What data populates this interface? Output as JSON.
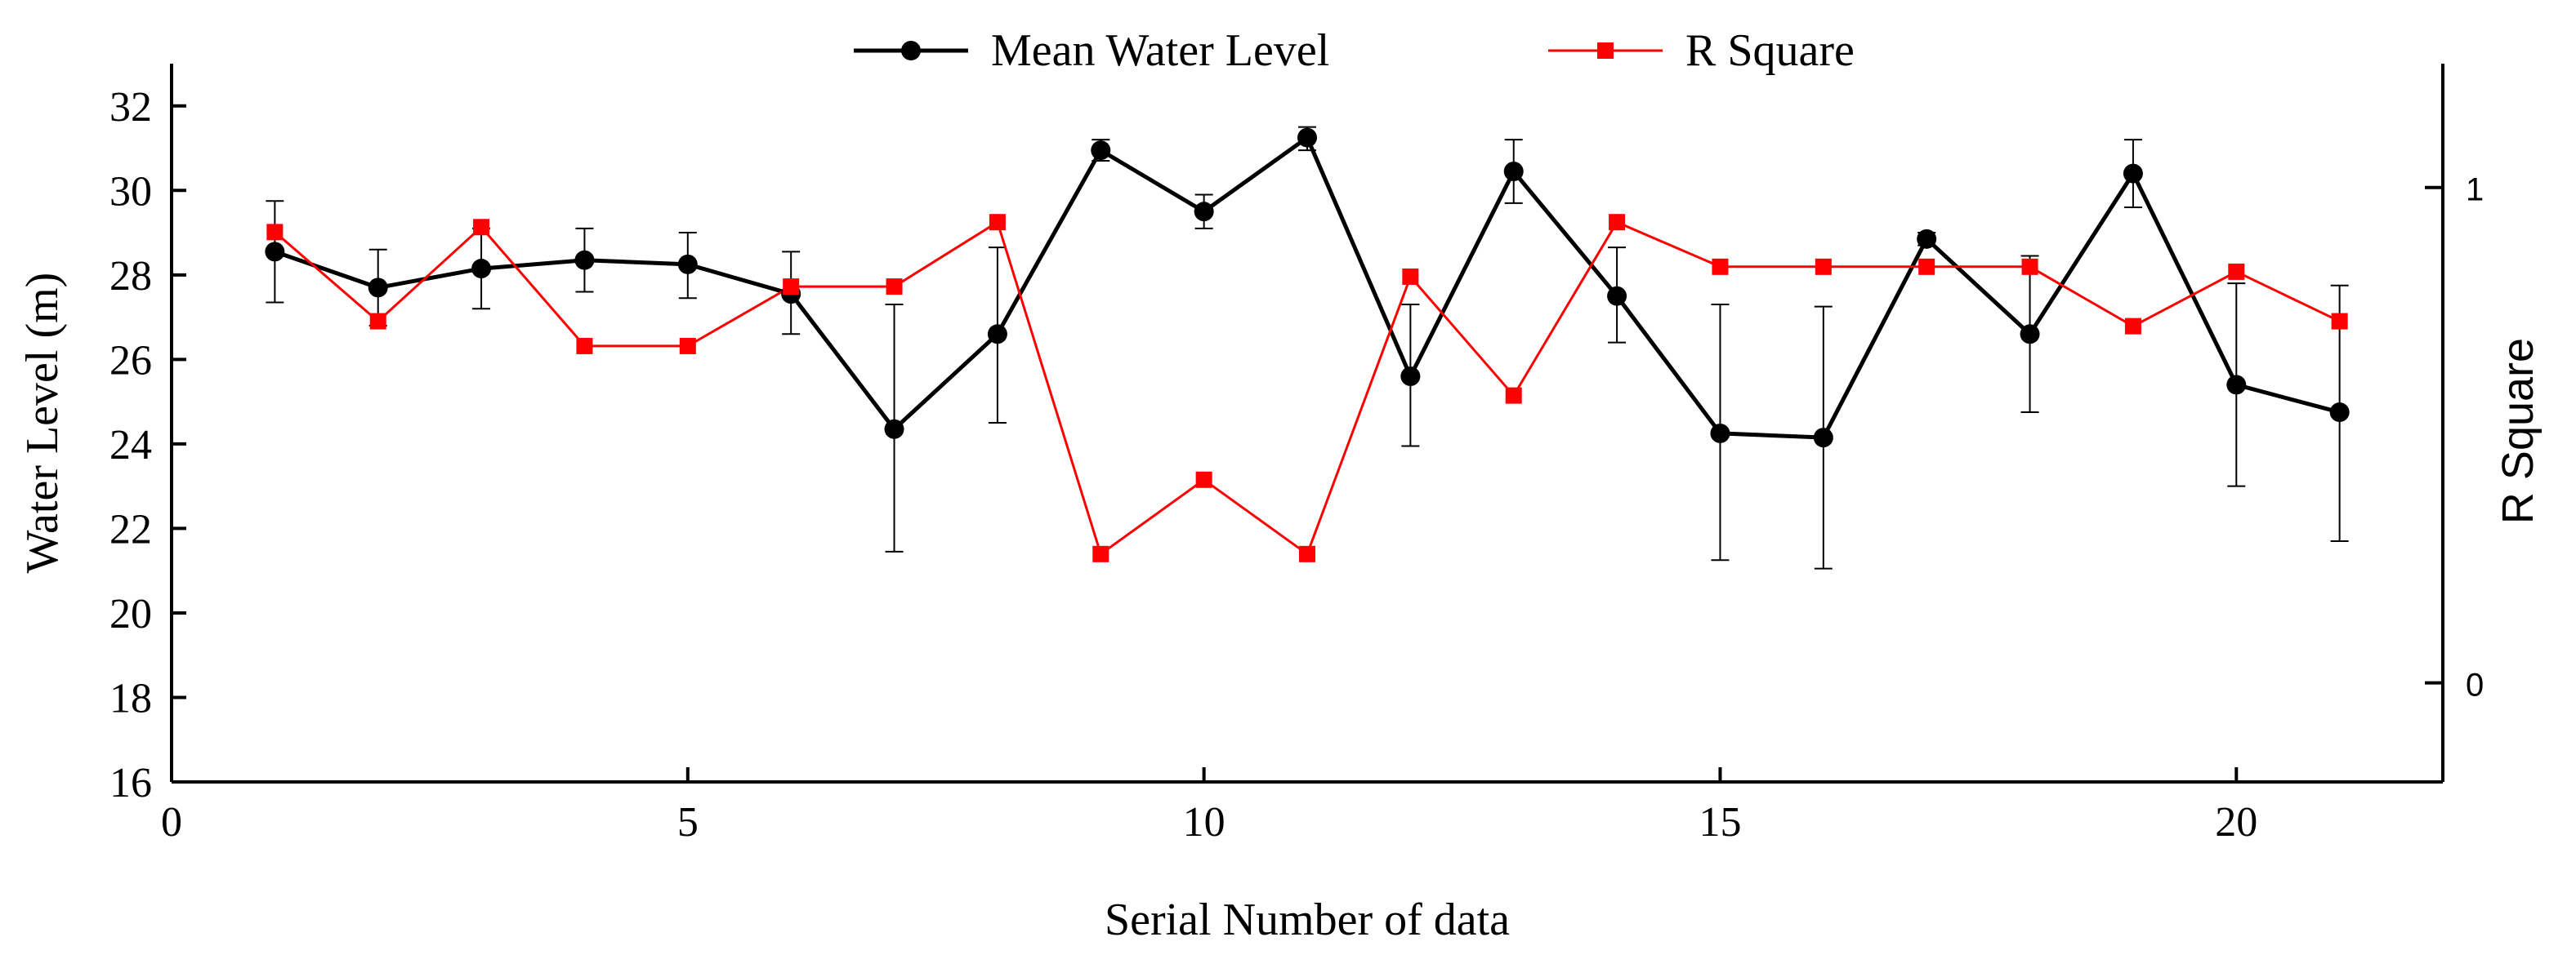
{
  "chart_data": {
    "type": "line",
    "title": "",
    "xlabel": "Serial Number of data",
    "ylabel": "Water Level (m)",
    "y2label": "R Square",
    "xlim": [
      0,
      22
    ],
    "ylim": [
      16,
      33
    ],
    "y2lim": [
      -0.2,
      1.25
    ],
    "xticks": [
      0,
      5,
      10,
      15,
      20
    ],
    "yticks": [
      16,
      18,
      20,
      22,
      24,
      26,
      28,
      30,
      32
    ],
    "y2ticks": [
      0,
      1
    ],
    "x": [
      1,
      2,
      3,
      4,
      5,
      6,
      7,
      8,
      9,
      10,
      11,
      12,
      13,
      14,
      15,
      16,
      17,
      18,
      19,
      20,
      21
    ],
    "series": [
      {
        "name": "Mean Water Level",
        "axis": "left",
        "color": "#000000",
        "marker": "circle",
        "values": [
          28.55,
          27.7,
          28.15,
          28.35,
          28.25,
          27.55,
          24.35,
          26.6,
          30.95,
          29.5,
          31.25,
          25.6,
          30.45,
          27.5,
          24.25,
          24.15,
          28.85,
          26.6,
          30.4,
          25.4,
          24.75
        ],
        "err_low": [
          27.35,
          26.8,
          27.2,
          27.6,
          27.45,
          26.6,
          21.45,
          24.5,
          30.7,
          29.1,
          30.95,
          23.95,
          29.7,
          26.4,
          21.25,
          21.05,
          28.7,
          24.75,
          29.6,
          23.0,
          21.7
        ],
        "err_high": [
          29.75,
          28.6,
          29.1,
          29.1,
          29.0,
          28.55,
          27.3,
          28.65,
          31.2,
          29.9,
          31.5,
          27.3,
          31.2,
          28.65,
          27.3,
          27.25,
          29.0,
          28.45,
          31.2,
          27.8,
          27.75
        ]
      },
      {
        "name": "R Square",
        "axis": "right",
        "color": "#ff0000",
        "marker": "square",
        "values": [
          0.91,
          0.73,
          0.92,
          0.68,
          0.68,
          0.8,
          0.8,
          0.93,
          0.26,
          0.41,
          0.26,
          0.82,
          0.58,
          0.93,
          0.84,
          0.84,
          0.84,
          0.84,
          0.72,
          0.83,
          0.73
        ]
      }
    ],
    "legend": "top-center"
  }
}
